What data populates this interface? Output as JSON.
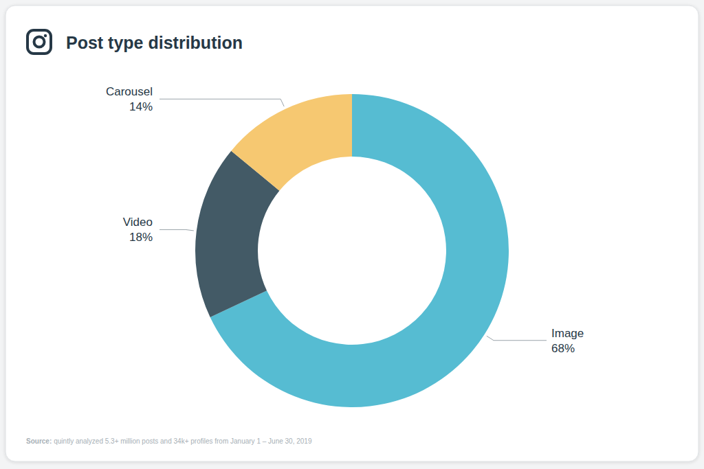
{
  "chart_data": {
    "type": "pie",
    "title": "Post type distribution",
    "categories": [
      "Image",
      "Video",
      "Carousel"
    ],
    "values": [
      68,
      18,
      14
    ],
    "value_labels": [
      "68%",
      "18%",
      "14%"
    ],
    "colors": [
      "#56bcd2",
      "#435a66",
      "#f6c871"
    ],
    "data_labels": true,
    "source_label": "Source:",
    "source": "quintly analyzed 5.3+ million posts and 34k+ profiles from January 1 – June 30, 2019"
  }
}
